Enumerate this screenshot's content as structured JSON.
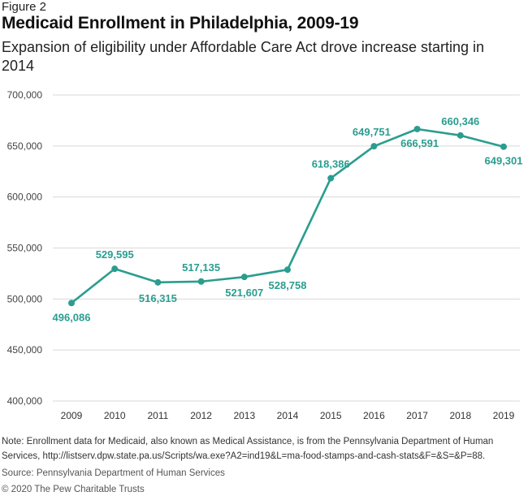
{
  "figure_label": "Figure 2",
  "title": "Medicaid Enrollment in Philadelphia, 2009-19",
  "subtitle": "Expansion of eligibility under Affordable Care Act drove increase starting in 2014",
  "note": "Note: Enrollment data for Medicaid, also known as Medical Assistance, is from the Pennsylvania Department of Human Services, http://listserv.dpw.state.pa.us/Scripts/wa.exe?A2=ind19&L=ma-food-stamps-and-cash-stats&F=&S=&P=88.",
  "source": "Source: Pennsylvania Department of Human Services",
  "copyright": "© 2020 The Pew Charitable Trusts",
  "colors": {
    "line": "#2a9d8f",
    "grid": "#d9d9d9"
  },
  "chart_data": {
    "type": "line",
    "title": "Medicaid Enrollment in Philadelphia, 2009-19",
    "xlabel": "",
    "ylabel": "",
    "x": [
      2009,
      2010,
      2011,
      2012,
      2013,
      2014,
      2015,
      2016,
      2017,
      2018,
      2019
    ],
    "series": [
      {
        "values": [
          496086,
          529595,
          516315,
          517135,
          521607,
          528758,
          618386,
          649751,
          666591,
          660346,
          649301
        ]
      }
    ],
    "data_labels": [
      "496,086",
      "529,595",
      "516,315",
      "517,135",
      "521,607",
      "528,758",
      "618,386",
      "649,751",
      "666,591",
      "660,346",
      "649,301"
    ],
    "ylim": [
      400000,
      700000
    ],
    "yticks": [
      400000,
      450000,
      500000,
      550000,
      600000,
      650000,
      700000
    ],
    "ytick_labels": [
      "400,000",
      "450,000",
      "500,000",
      "550,000",
      "600,000",
      "650,000",
      "700,000"
    ],
    "grid": "horizontal",
    "legend": "none"
  }
}
